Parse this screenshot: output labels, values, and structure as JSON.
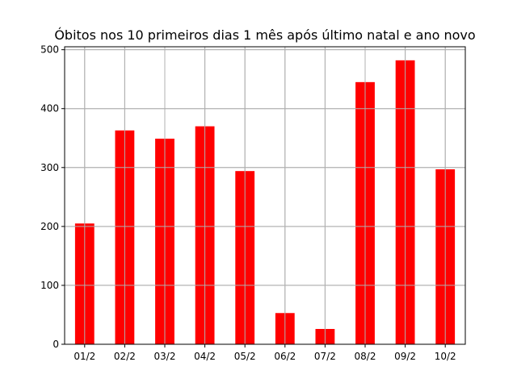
{
  "chart_data": {
    "type": "bar",
    "title": "Óbitos nos 10 primeiros dias 1 mês após último natal e ano novo",
    "xlabel": "",
    "ylabel": "",
    "categories": [
      "01/2",
      "02/2",
      "03/2",
      "04/2",
      "05/2",
      "06/2",
      "07/2",
      "08/2",
      "09/2",
      "10/2"
    ],
    "values": [
      205,
      363,
      349,
      370,
      294,
      53,
      26,
      445,
      482,
      297
    ],
    "ylim": [
      0,
      505
    ],
    "yticks": [
      0,
      100,
      200,
      300,
      400,
      500
    ],
    "grid": true,
    "bar_color": "#ff0000",
    "grid_color": "#b0b0b0"
  }
}
